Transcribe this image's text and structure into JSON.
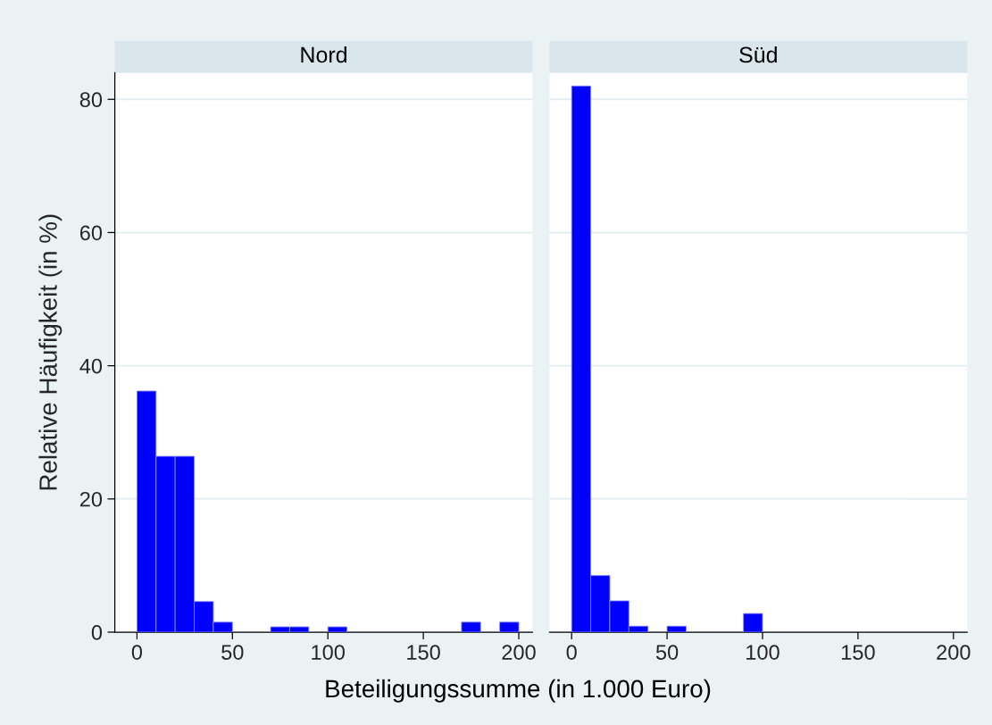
{
  "chart_data": [
    {
      "type": "histogram",
      "title": "Nord",
      "ylabel": "Relative Häufigkeit (in %)",
      "xlabel": "Beteiligungssumme (in 1.000 Euro)",
      "bins": [
        0,
        10,
        20,
        30,
        40,
        50,
        60,
        70,
        80,
        90,
        100,
        110,
        120,
        130,
        140,
        150,
        160,
        170,
        180,
        190,
        200
      ],
      "values": [
        36.2,
        26.4,
        26.4,
        4.6,
        1.5,
        0,
        0,
        0.8,
        0.8,
        0,
        0.8,
        0,
        0,
        0,
        0,
        0,
        0,
        1.5,
        0,
        1.5
      ],
      "color": "#0000ff",
      "xlim": [
        -11.6,
        207.2
      ],
      "xticks": [
        0,
        50,
        100,
        150,
        200
      ],
      "ylim": [
        0,
        84
      ],
      "yticks": [
        0,
        20,
        40,
        60,
        80
      ],
      "grid": "y"
    },
    {
      "type": "histogram",
      "title": "Süd",
      "bins": [
        0,
        10,
        20,
        30,
        40,
        50,
        60,
        70,
        80,
        90,
        100
      ],
      "values": [
        82,
        8.5,
        4.7,
        0.9,
        0,
        0.9,
        0,
        0,
        0,
        2.8
      ],
      "color": "#0000ff",
      "xlim": [
        -11.6,
        207.2
      ],
      "xticks": [
        0,
        50,
        100,
        150,
        200
      ],
      "ylim": [
        0,
        84
      ],
      "yticks": [
        0,
        20,
        40,
        60,
        80
      ],
      "grid": "y",
      "tick_labels": "x"
    }
  ]
}
